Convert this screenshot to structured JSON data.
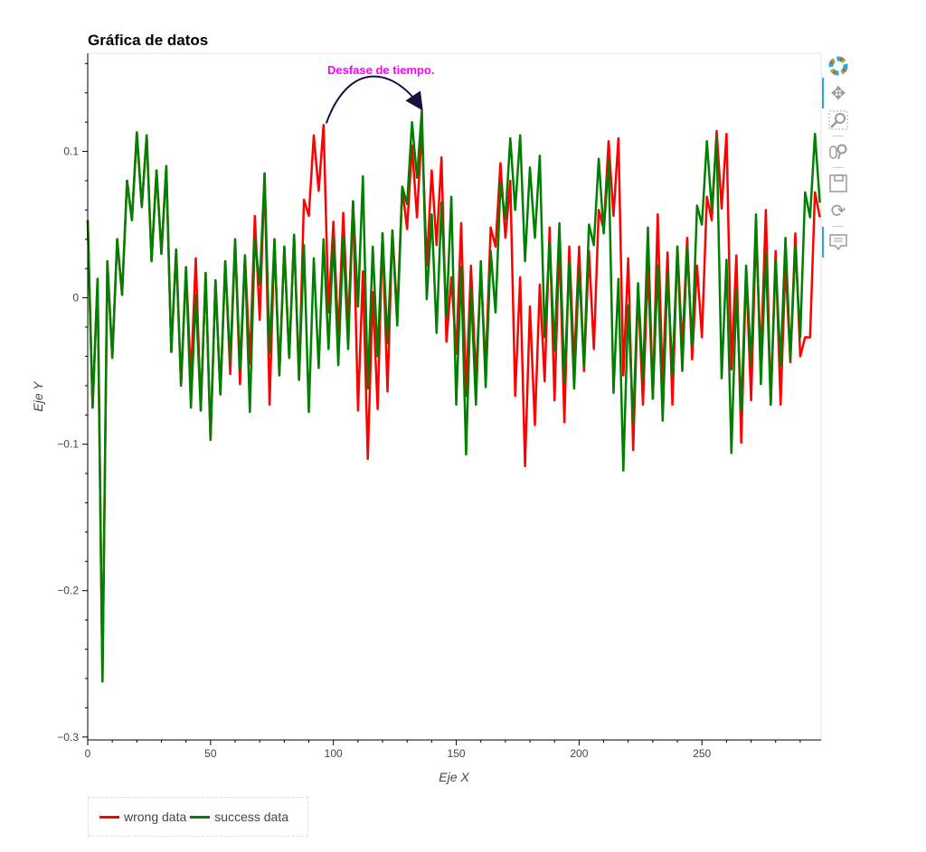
{
  "chart_data": {
    "type": "line",
    "title": "Gráfica de datos",
    "xlabel": "Eje X",
    "ylabel": "Eje Y",
    "xlim": [
      0,
      298.5
    ],
    "ylim": [
      -0.302,
      0.167
    ],
    "x_start": 0,
    "x_step": 2,
    "x_ticks": [
      0,
      50,
      100,
      150,
      200,
      250
    ],
    "x_tick_labels": [
      "0",
      "50",
      "100",
      "150",
      "200",
      "250"
    ],
    "y_ticks": [
      -0.3,
      -0.2,
      -0.1,
      0,
      0.1
    ],
    "y_tick_labels": [
      "−0.3",
      "−0.2",
      "−0.1",
      "0",
      "0.1"
    ],
    "grid": false,
    "legend_position": "bottom-left outside",
    "annotation": {
      "text": "Desfase de tiempo.",
      "from": [
        96,
        0.118
      ],
      "to": [
        136,
        0.128
      ],
      "color": "#ff00ff",
      "arrow_color": "#1a1040"
    },
    "series": [
      {
        "name": "wrong data",
        "color": "#ff0000",
        "values": [
          0.053,
          -0.075,
          0.013,
          -0.262,
          0.025,
          -0.041,
          0.04,
          0.002,
          0.08,
          0.053,
          0.113,
          0.062,
          0.111,
          0.025,
          0.087,
          0.03,
          0.09,
          -0.037,
          0.033,
          -0.06,
          0.021,
          -0.055,
          0.027,
          -0.077,
          0.017,
          -0.097,
          0.012,
          -0.066,
          0.025,
          -0.052,
          0.04,
          -0.059,
          0.029,
          -0.045,
          0.056,
          -0.015,
          0.085,
          -0.073,
          0.04,
          -0.053,
          0.035,
          -0.041,
          0.043,
          -0.056,
          0.067,
          0.056,
          0.111,
          0.073,
          0.118,
          -0.01,
          0.052,
          -0.027,
          0.058,
          -0.02,
          0.066,
          -0.077,
          0.018,
          -0.11,
          0.004,
          -0.076,
          0.044,
          -0.064,
          0.046,
          -0.012,
          0.075,
          0.047,
          0.104,
          0.055,
          0.117,
          0.022,
          0.087,
          0.036,
          0.096,
          -0.03,
          0.014,
          -0.038,
          0.051,
          -0.067,
          0.022,
          -0.056,
          0.018,
          -0.048,
          0.048,
          0.035,
          0.092,
          0.041,
          0.08,
          -0.067,
          0.014,
          -0.115,
          -0.006,
          -0.087,
          0.009,
          -0.057,
          0.048,
          -0.07,
          0.04,
          -0.085,
          0.035,
          -0.046,
          0.035,
          -0.05,
          0.032,
          -0.035,
          0.06,
          0.047,
          0.107,
          0.056,
          0.109,
          -0.053,
          0.027,
          -0.104,
          0.007,
          -0.073,
          0.022,
          -0.069,
          0.057,
          -0.06,
          0.031,
          -0.073,
          0.035,
          -0.035,
          0.041,
          -0.042,
          0.022,
          -0.027,
          0.069,
          0.053,
          0.114,
          0.061,
          0.112,
          -0.049,
          0.029,
          -0.099,
          0.02,
          -0.07,
          0.047,
          -0.042,
          0.06,
          -0.073,
          0.032,
          -0.073,
          0.024,
          -0.044,
          0.044,
          -0.04,
          -0.027,
          -0.027,
          0.072,
          0.055
        ]
      },
      {
        "name": "success data",
        "color": "#008000",
        "values": [
          0.053,
          -0.075,
          0.013,
          -0.262,
          0.025,
          -0.041,
          0.04,
          0.002,
          0.08,
          0.053,
          0.113,
          0.062,
          0.111,
          0.025,
          0.087,
          0.03,
          0.09,
          -0.037,
          0.033,
          -0.06,
          0.021,
          -0.075,
          0.002,
          -0.077,
          0.017,
          -0.097,
          0.012,
          -0.066,
          0.025,
          -0.044,
          0.04,
          -0.049,
          0.029,
          -0.078,
          0.041,
          0.009,
          0.085,
          -0.038,
          0.04,
          -0.053,
          0.035,
          -0.041,
          0.043,
          -0.056,
          0.036,
          -0.078,
          0.027,
          -0.048,
          0.04,
          -0.035,
          0.041,
          -0.046,
          0.041,
          -0.035,
          0.066,
          -0.006,
          0.083,
          -0.062,
          0.035,
          -0.04,
          0.044,
          -0.031,
          0.046,
          -0.019,
          0.076,
          0.064,
          0.12,
          0.082,
          0.128,
          -0.001,
          0.057,
          -0.024,
          0.065,
          -0.013,
          0.069,
          -0.073,
          0.021,
          -0.107,
          0.007,
          -0.073,
          0.025,
          -0.061,
          0.032,
          -0.01,
          0.078,
          0.054,
          0.109,
          0.06,
          0.111,
          0.025,
          0.089,
          0.041,
          0.097,
          -0.027,
          0.038,
          -0.036,
          0.051,
          -0.058,
          0.024,
          -0.062,
          0.021,
          -0.047,
          0.05,
          0.036,
          0.095,
          0.044,
          0.094,
          -0.065,
          0.013,
          -0.118,
          -0.005,
          -0.086,
          0.01,
          -0.056,
          0.048,
          -0.069,
          0.022,
          -0.084,
          0.018,
          -0.052,
          0.035,
          -0.05,
          0.035,
          -0.033,
          0.063,
          0.05,
          0.107,
          0.06,
          0.109,
          -0.055,
          0.026,
          -0.106,
          0.006,
          -0.077,
          0.022,
          -0.046,
          0.057,
          -0.059,
          0.031,
          -0.073,
          0.026,
          -0.046,
          0.041,
          -0.042,
          0.035,
          -0.027,
          0.072,
          0.055,
          0.112,
          0.065
        ]
      }
    ]
  },
  "toolbar": {
    "tools": [
      "bokeh-logo",
      "pan",
      "box-zoom",
      "wheel-zoom",
      "save",
      "reset",
      "hover"
    ]
  }
}
